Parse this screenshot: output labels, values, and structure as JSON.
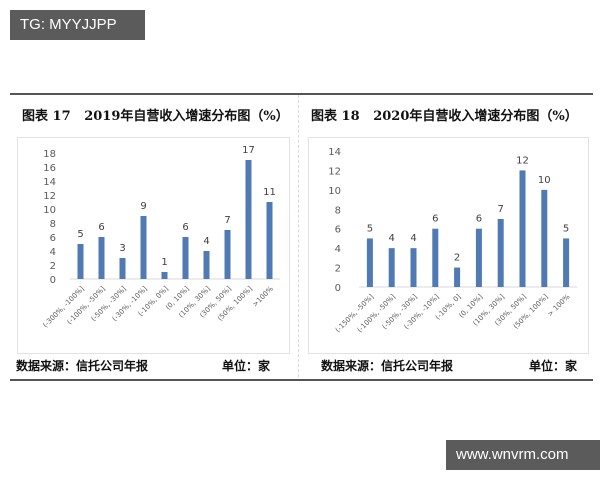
{
  "watermarks": {
    "top_left": "TG: MYYJJPP",
    "bottom_right": "www.wnvrm.com"
  },
  "colors": {
    "bar": "#4f7ab3",
    "axis_text": "#595959",
    "label_text": "#404040",
    "watermark_bg": "#5b5b5b"
  },
  "panels": [
    {
      "title": "图表 17   2019年自营收入增速分布图（%）",
      "source": "数据来源：信托公司年报",
      "unit": "单位：家"
    },
    {
      "title": "图表 18   2020年自营收入增速分布图（%）",
      "source": "数据来源：信托公司年报",
      "unit": "单位：家"
    }
  ],
  "chart_data": [
    {
      "type": "bar",
      "title": "图表 17 2019年自营收入增速分布图（%）",
      "categories": [
        "(-300%, -100%]",
        "(-100%, -50%]",
        "(-50%, -30%]",
        "(-30%, -10%]",
        "(-10%, 0%]",
        "(0, 10%]",
        "(10%, 30%]",
        "(30%, 50%]",
        "(50%, 100%]",
        ">100%"
      ],
      "values": [
        5,
        6,
        3,
        9,
        1,
        6,
        4,
        7,
        17,
        11
      ],
      "xlabel": "",
      "ylabel": "",
      "yticks": [
        0,
        2,
        4,
        6,
        8,
        10,
        12,
        14,
        16,
        18
      ],
      "ylim": [
        0,
        18
      ],
      "grid": false,
      "data_labels": true,
      "legend": "none",
      "unit": "家"
    },
    {
      "type": "bar",
      "title": "图表 18 2020年自营收入增速分布图（%）",
      "categories": [
        "(-150%, -50%]",
        "(-100%, -50%]",
        "(-50%, -30%]",
        "(-30%, -10%]",
        "(-10%, 0]",
        "(0, 10%]",
        "(10%, 30%]",
        "(30%, 50%]",
        "(50%, 100%]",
        "> 100%"
      ],
      "values": [
        5,
        4,
        4,
        6,
        2,
        6,
        7,
        12,
        10,
        5
      ],
      "xlabel": "",
      "ylabel": "",
      "yticks": [
        0,
        2,
        4,
        6,
        8,
        10,
        12,
        14
      ],
      "ylim": [
        0,
        14
      ],
      "grid": false,
      "data_labels": true,
      "legend": "none",
      "unit": "家"
    }
  ]
}
